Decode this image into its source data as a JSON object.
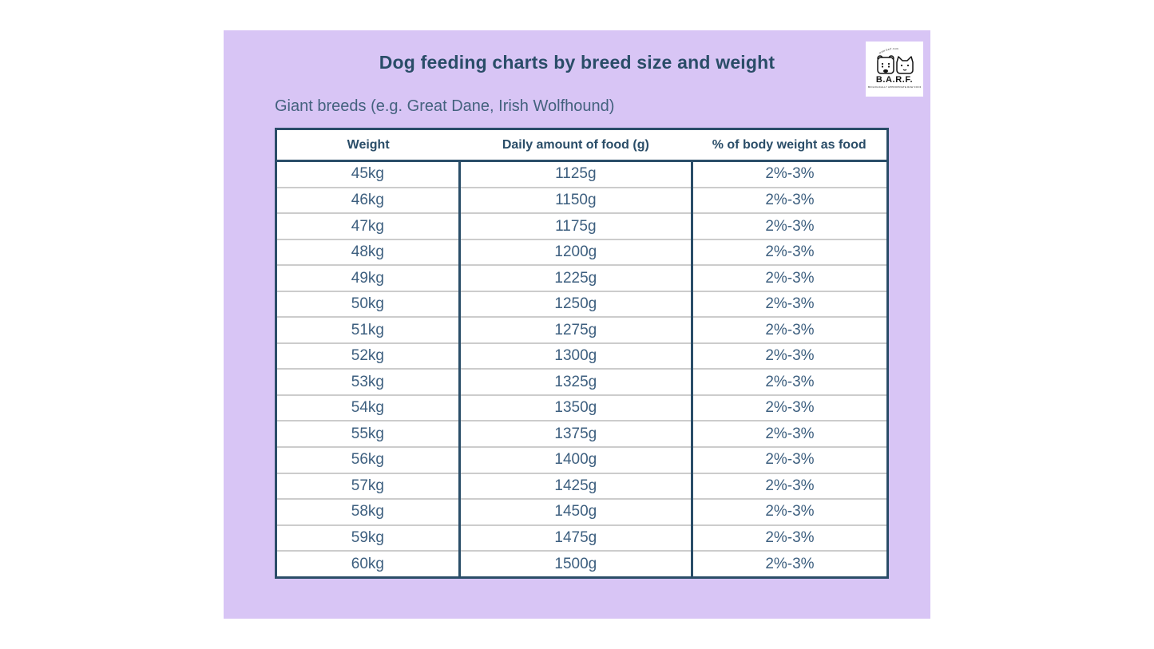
{
  "colors": {
    "panel_background": "#d8c5f5",
    "navy_accent": "#2a4d68",
    "cell_text": "#3d5f7f",
    "row_divider": "#cccccc",
    "page_background": "#ffffff"
  },
  "logo": {
    "brand": "B.A.R.F.",
    "arc_microtext": "www.barf.com",
    "caption_microtext": "BIOLOGICALLY APPROPRIATE RAW FOOD"
  },
  "chart_data": {
    "type": "table",
    "title": "Dog feeding charts by breed size and weight",
    "subtitle": "Giant breeds (e.g. Great Dane, Irish Wolfhound)",
    "columns": [
      "Weight",
      "Daily amount of food (g)",
      "% of body weight as food"
    ],
    "rows": [
      [
        "45kg",
        "1125g",
        "2%-3%"
      ],
      [
        "46kg",
        "1150g",
        "2%-3%"
      ],
      [
        "47kg",
        "1175g",
        "2%-3%"
      ],
      [
        "48kg",
        "1200g",
        "2%-3%"
      ],
      [
        "49kg",
        "1225g",
        "2%-3%"
      ],
      [
        "50kg",
        "1250g",
        "2%-3%"
      ],
      [
        "51kg",
        "1275g",
        "2%-3%"
      ],
      [
        "52kg",
        "1300g",
        "2%-3%"
      ],
      [
        "53kg",
        "1325g",
        "2%-3%"
      ],
      [
        "54kg",
        "1350g",
        "2%-3%"
      ],
      [
        "55kg",
        "1375g",
        "2%-3%"
      ],
      [
        "56kg",
        "1400g",
        "2%-3%"
      ],
      [
        "57kg",
        "1425g",
        "2%-3%"
      ],
      [
        "58kg",
        "1450g",
        "2%-3%"
      ],
      [
        "59kg",
        "1475g",
        "2%-3%"
      ],
      [
        "60kg",
        "1500g",
        "2%-3%"
      ]
    ]
  }
}
